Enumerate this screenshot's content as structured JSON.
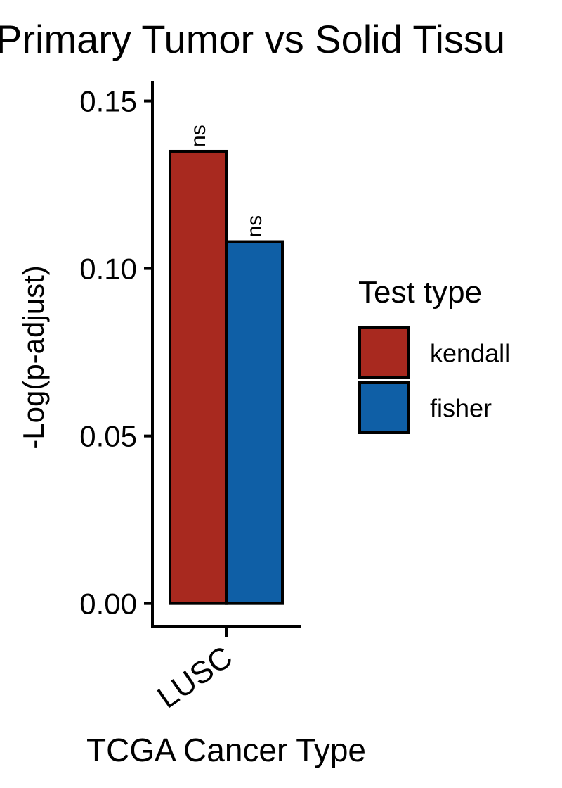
{
  "chart_data": {
    "type": "bar",
    "title": "Primary Tumor vs Solid Tissu",
    "xlabel": "TCGA Cancer Type",
    "ylabel": "-Log(p-adjust)",
    "categories": [
      "LUSC"
    ],
    "series": [
      {
        "name": "kendall",
        "values": [
          0.135
        ],
        "color": "#A8291F",
        "annotation": "ns"
      },
      {
        "name": "fisher",
        "values": [
          0.108
        ],
        "color": "#0F5FA6",
        "annotation": "ns"
      }
    ],
    "ylim": [
      -0.007,
      0.156
    ],
    "yticks": [
      0.0,
      0.05,
      0.1,
      0.15
    ],
    "ytick_labels": [
      "0.00",
      "0.05",
      "0.10",
      "0.15"
    ],
    "grid": false,
    "legend": {
      "title": "Test type",
      "position": "right"
    }
  }
}
